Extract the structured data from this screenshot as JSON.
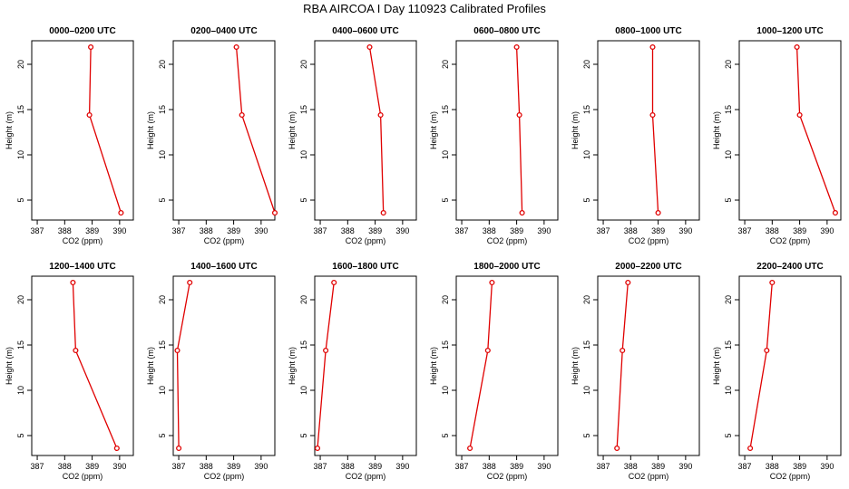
{
  "title": "RBA AIRCOA I  Day 110923  Calibrated Profiles",
  "style": {
    "line_color": "#e00000",
    "point_color": "#e00000",
    "frame_color": "#000000"
  },
  "chart_data": [
    {
      "type": "line",
      "title": "0000–0200 UTC",
      "xlabel": "CO2 (ppm)",
      "ylabel": "Height (m)",
      "xlim": [
        386.8,
        390.5
      ],
      "ylim": [
        2.8,
        22.6
      ],
      "xticks": [
        387,
        388,
        389,
        390
      ],
      "yticks": [
        5,
        10,
        15,
        20
      ],
      "x": [
        388.95,
        388.9,
        390.05
      ],
      "y": [
        21.9,
        14.4,
        3.6
      ]
    },
    {
      "type": "line",
      "title": "0200–0400 UTC",
      "xlabel": "CO2 (ppm)",
      "ylabel": "Height (m)",
      "xlim": [
        386.8,
        390.5
      ],
      "ylim": [
        2.8,
        22.6
      ],
      "xticks": [
        387,
        388,
        389,
        390
      ],
      "yticks": [
        5,
        10,
        15,
        20
      ],
      "x": [
        389.1,
        389.3,
        390.5
      ],
      "y": [
        21.9,
        14.4,
        3.6
      ]
    },
    {
      "type": "line",
      "title": "0400–0600 UTC",
      "xlabel": "CO2 (ppm)",
      "ylabel": "Height (m)",
      "xlim": [
        386.8,
        390.5
      ],
      "ylim": [
        2.8,
        22.6
      ],
      "xticks": [
        387,
        388,
        389,
        390
      ],
      "yticks": [
        5,
        10,
        15,
        20
      ],
      "x": [
        388.8,
        389.2,
        389.3
      ],
      "y": [
        21.9,
        14.4,
        3.6
      ]
    },
    {
      "type": "line",
      "title": "0600–0800 UTC",
      "xlabel": "CO2 (ppm)",
      "ylabel": "Height (m)",
      "xlim": [
        386.8,
        390.5
      ],
      "ylim": [
        2.8,
        22.6
      ],
      "xticks": [
        387,
        388,
        389,
        390
      ],
      "yticks": [
        5,
        10,
        15,
        20
      ],
      "x": [
        389.0,
        389.1,
        389.2
      ],
      "y": [
        21.9,
        14.4,
        3.6
      ]
    },
    {
      "type": "line",
      "title": "0800–1000 UTC",
      "xlabel": "CO2 (ppm)",
      "ylabel": "Height (m)",
      "xlim": [
        386.8,
        390.5
      ],
      "ylim": [
        2.8,
        22.6
      ],
      "xticks": [
        387,
        388,
        389,
        390
      ],
      "yticks": [
        5,
        10,
        15,
        20
      ],
      "x": [
        388.8,
        388.8,
        389.0
      ],
      "y": [
        21.9,
        14.4,
        3.6
      ]
    },
    {
      "type": "line",
      "title": "1000–1200 UTC",
      "xlabel": "CO2 (ppm)",
      "ylabel": "Height (m)",
      "xlim": [
        386.8,
        390.5
      ],
      "ylim": [
        2.8,
        22.6
      ],
      "xticks": [
        387,
        388,
        389,
        390
      ],
      "yticks": [
        5,
        10,
        15,
        20
      ],
      "x": [
        388.9,
        389.0,
        390.3
      ],
      "y": [
        21.9,
        14.4,
        3.6
      ]
    },
    {
      "type": "line",
      "title": "1200–1400 UTC",
      "xlabel": "CO2 (ppm)",
      "ylabel": "Height (m)",
      "xlim": [
        386.8,
        390.5
      ],
      "ylim": [
        2.8,
        22.6
      ],
      "xticks": [
        387,
        388,
        389,
        390
      ],
      "yticks": [
        5,
        10,
        15,
        20
      ],
      "x": [
        388.3,
        388.4,
        389.9
      ],
      "y": [
        21.9,
        14.4,
        3.6
      ]
    },
    {
      "type": "line",
      "title": "1400–1600 UTC",
      "xlabel": "CO2 (ppm)",
      "ylabel": "Height (m)",
      "xlim": [
        386.8,
        390.5
      ],
      "ylim": [
        2.8,
        22.6
      ],
      "xticks": [
        387,
        388,
        389,
        390
      ],
      "yticks": [
        5,
        10,
        15,
        20
      ],
      "x": [
        387.4,
        386.95,
        387.0
      ],
      "y": [
        21.9,
        14.4,
        3.6
      ]
    },
    {
      "type": "line",
      "title": "1600–1800 UTC",
      "xlabel": "CO2 (ppm)",
      "ylabel": "Height (m)",
      "xlim": [
        386.8,
        390.5
      ],
      "ylim": [
        2.8,
        22.6
      ],
      "xticks": [
        387,
        388,
        389,
        390
      ],
      "yticks": [
        5,
        10,
        15,
        20
      ],
      "x": [
        387.5,
        387.2,
        386.9
      ],
      "y": [
        21.9,
        14.4,
        3.6
      ]
    },
    {
      "type": "line",
      "title": "1800–2000 UTC",
      "xlabel": "CO2 (ppm)",
      "ylabel": "Height (m)",
      "xlim": [
        386.8,
        390.5
      ],
      "ylim": [
        2.8,
        22.6
      ],
      "xticks": [
        387,
        388,
        389,
        390
      ],
      "yticks": [
        5,
        10,
        15,
        20
      ],
      "x": [
        388.1,
        387.95,
        387.3
      ],
      "y": [
        21.9,
        14.4,
        3.6
      ]
    },
    {
      "type": "line",
      "title": "2000–2200 UTC",
      "xlabel": "CO2 (ppm)",
      "ylabel": "Height (m)",
      "xlim": [
        386.8,
        390.5
      ],
      "ylim": [
        2.8,
        22.6
      ],
      "xticks": [
        387,
        388,
        389,
        390
      ],
      "yticks": [
        5,
        10,
        15,
        20
      ],
      "x": [
        387.9,
        387.7,
        387.5
      ],
      "y": [
        21.9,
        14.4,
        3.6
      ]
    },
    {
      "type": "line",
      "title": "2200–2400 UTC",
      "xlabel": "CO2 (ppm)",
      "ylabel": "Height (m)",
      "xlim": [
        386.8,
        390.5
      ],
      "ylim": [
        2.8,
        22.6
      ],
      "xticks": [
        387,
        388,
        389,
        390
      ],
      "yticks": [
        5,
        10,
        15,
        20
      ],
      "x": [
        388.0,
        387.8,
        387.2
      ],
      "y": [
        21.9,
        14.4,
        3.6
      ]
    }
  ]
}
